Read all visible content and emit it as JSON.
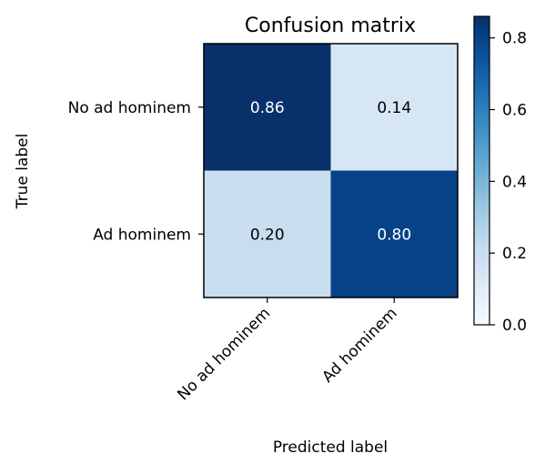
{
  "chart_data": {
    "type": "heatmap",
    "title": "Confusion matrix",
    "xlabel": "Predicted label",
    "ylabel": "True label",
    "row_labels": [
      "No ad hominem",
      "Ad hominem"
    ],
    "col_labels": [
      "No ad hominem",
      "Ad hominem"
    ],
    "values": [
      [
        0.86,
        0.14
      ],
      [
        0.2,
        0.8
      ]
    ],
    "cell_text": [
      [
        "0.86",
        "0.14"
      ],
      [
        "0.20",
        "0.80"
      ]
    ],
    "colormap": "Blues",
    "vmin": 0.0,
    "vmax": 0.86,
    "colorbar": {
      "ticks": [
        0.0,
        0.2,
        0.4,
        0.6,
        0.8
      ],
      "tick_labels": [
        "0.0",
        "0.2",
        "0.4",
        "0.6",
        "0.8"
      ]
    },
    "text_colors": {
      "dark_cell": "#ffffff",
      "light_cell": "#000000"
    }
  }
}
